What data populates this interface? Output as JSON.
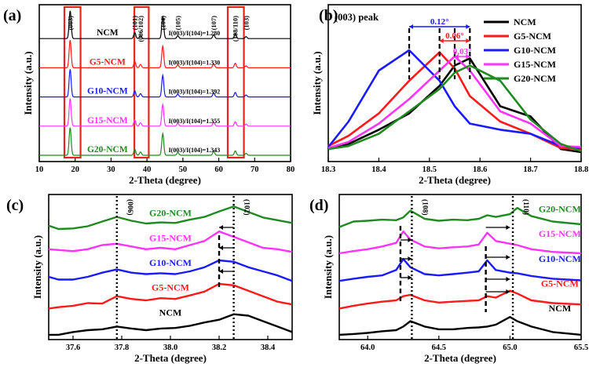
{
  "chart_data": [
    {
      "panel": "(a)",
      "type": "line",
      "xlabel": "2-Theta (degree)",
      "ylabel": "Intensity (a.u.)",
      "xlim": [
        10,
        80
      ],
      "xticks": [
        10,
        20,
        30,
        40,
        50,
        60,
        70,
        80
      ],
      "series": [
        {
          "name": "NCM",
          "color": "#000000",
          "ratio": "I(003)/I(104)=1.280"
        },
        {
          "name": "G5-NCM",
          "color": "#ff1a1a",
          "ratio": "I(003)/I(104)=1.330"
        },
        {
          "name": "G10-NCM",
          "color": "#1a1aff",
          "ratio": "I(003)/I(104)=1.392"
        },
        {
          "name": "G15-NCM",
          "color": "#ff33ff",
          "ratio": "I(003)/I(104)=1.355"
        },
        {
          "name": "G20-NCM",
          "color": "#1f8a1f",
          "ratio": "I(003)/I(104)=1.343"
        }
      ],
      "peaks": [
        {
          "label": "(003)",
          "x": 18.6,
          "h": 1.0
        },
        {
          "label": "(101)",
          "x": 36.6,
          "h": 0.22
        },
        {
          "label": "(006/102)",
          "x": 38.2,
          "h": 0.12
        },
        {
          "label": "(104)",
          "x": 44.4,
          "h": 0.78
        },
        {
          "label": "(105)",
          "x": 48.6,
          "h": 0.1
        },
        {
          "label": "(107)",
          "x": 58.6,
          "h": 0.14
        },
        {
          "label": "(108/110)",
          "x": 64.6,
          "h": 0.16
        },
        {
          "label": "(103)",
          "x": 67.6,
          "h": 0.07
        }
      ],
      "highlight_boxes": [
        [
          17,
          21.5
        ],
        [
          36.5,
          40.5
        ],
        [
          62.5,
          67
        ]
      ]
    },
    {
      "panel": "(b)",
      "type": "line",
      "title": "(003) peak",
      "xlabel": "2-Theta (degree)",
      "ylabel": "Intensity (a.u.)",
      "xlim": [
        18.3,
        18.8
      ],
      "xticks": [
        18.3,
        18.4,
        18.5,
        18.6,
        18.7,
        18.8
      ],
      "x": [
        18.3,
        18.34,
        18.4,
        18.46,
        18.52,
        18.55,
        18.58,
        18.64,
        18.7,
        18.76,
        18.8
      ],
      "series": [
        {
          "name": "NCM",
          "color": "#000000",
          "values": [
            0.03,
            0.08,
            0.22,
            0.38,
            0.65,
            0.85,
            0.92,
            0.45,
            0.35,
            0.03,
            0.0
          ]
        },
        {
          "name": "G5-NCM",
          "color": "#ff1a1a",
          "values": [
            0.06,
            0.16,
            0.38,
            0.7,
            0.98,
            0.82,
            0.55,
            0.3,
            0.18,
            0.04,
            0.03
          ]
        },
        {
          "name": "G10-NCM",
          "color": "#1a1aff",
          "values": [
            0.05,
            0.3,
            0.8,
            1.0,
            0.7,
            0.45,
            0.28,
            0.22,
            0.18,
            0.06,
            0.04
          ]
        },
        {
          "name": "G15-NCM",
          "color": "#ff33ff",
          "values": [
            0.04,
            0.1,
            0.28,
            0.52,
            0.8,
            0.94,
            0.8,
            0.4,
            0.28,
            0.06,
            0.05
          ]
        },
        {
          "name": "G20-NCM",
          "color": "#1f8a1f",
          "values": [
            0.03,
            0.06,
            0.18,
            0.4,
            0.62,
            0.78,
            0.85,
            0.7,
            0.32,
            0.08,
            0.01
          ]
        }
      ],
      "annotations": [
        {
          "text": "0.12°",
          "color": "#1a1aff",
          "from": 18.46,
          "to": 18.58
        },
        {
          "text": "0.06°",
          "color": "#ff1a1a",
          "from": 18.52,
          "to": 18.58
        },
        {
          "text": "0.03°",
          "color": "#ff33ff",
          "from": 18.55,
          "to": 18.58
        }
      ]
    },
    {
      "panel": "(c)",
      "type": "line",
      "xlabel": "2-Theta (degree)",
      "ylabel": "Intensity (a.u.)",
      "xlim": [
        37.5,
        38.5
      ],
      "xticks": [
        37.6,
        37.8,
        38.0,
        38.2,
        38.4
      ],
      "x": [
        37.5,
        37.54,
        37.6,
        37.66,
        37.72,
        37.78,
        37.84,
        37.9,
        37.96,
        38.02,
        38.08,
        38.14,
        38.2,
        38.26,
        38.32,
        38.38,
        38.44,
        38.5
      ],
      "peak_markers": [
        {
          "label": "(006)",
          "x": 37.78
        },
        {
          "label": "(102)",
          "x": 38.26
        }
      ],
      "series": [
        {
          "name": "G20-NCM",
          "color": "#1f8a1f",
          "values": [
            0.4,
            0.28,
            0.3,
            0.38,
            0.55,
            0.72,
            0.58,
            0.48,
            0.52,
            0.5,
            0.62,
            0.72,
            0.92,
            1.1,
            0.9,
            0.7,
            0.6,
            0.5
          ]
        },
        {
          "name": "G15-NCM",
          "color": "#ff33ff",
          "values": [
            0.45,
            0.42,
            0.38,
            0.45,
            0.6,
            0.65,
            0.55,
            0.45,
            0.5,
            0.45,
            0.6,
            0.75,
            1.1,
            0.9,
            0.7,
            0.5,
            0.45,
            0.35
          ]
        },
        {
          "name": "G10-NCM",
          "color": "#1a1aff",
          "values": [
            0.35,
            0.25,
            0.25,
            0.35,
            0.5,
            0.62,
            0.5,
            0.45,
            0.48,
            0.45,
            0.55,
            0.7,
            0.95,
            0.9,
            0.7,
            0.55,
            0.4,
            0.2
          ]
        },
        {
          "name": "G5-NCM",
          "color": "#ff1a1a",
          "values": [
            0.1,
            0.15,
            0.2,
            0.3,
            0.28,
            0.55,
            0.45,
            0.4,
            0.48,
            0.45,
            0.58,
            0.72,
            1.0,
            0.95,
            0.75,
            0.55,
            0.35,
            0.25
          ]
        },
        {
          "name": "NCM",
          "color": "#000000",
          "values": [
            0.05,
            0.05,
            0.15,
            0.22,
            0.25,
            0.35,
            0.28,
            0.22,
            0.28,
            0.3,
            0.38,
            0.5,
            0.6,
            0.8,
            0.75,
            0.55,
            0.35,
            0.15
          ]
        }
      ]
    },
    {
      "panel": "(d)",
      "type": "line",
      "xlabel": "2-Theta (degree)",
      "ylabel": "Intensity (a.u.)",
      "xlim": [
        63.8,
        65.5
      ],
      "xticks": [
        64.0,
        64.5,
        65.0,
        65.5
      ],
      "x": [
        63.8,
        63.9,
        64.0,
        64.1,
        64.2,
        64.25,
        64.3,
        64.4,
        64.5,
        64.6,
        64.7,
        64.78,
        64.84,
        64.9,
        65.0,
        65.05,
        65.15,
        65.3,
        65.5
      ],
      "peak_markers": [
        {
          "label": "(108)",
          "x": 64.31
        },
        {
          "label": "(110)",
          "x": 65.02
        }
      ],
      "series": [
        {
          "name": "G20-NCM",
          "color": "#1f8a1f",
          "values": [
            0.35,
            0.55,
            0.58,
            0.62,
            0.6,
            0.7,
            0.95,
            0.65,
            0.58,
            0.62,
            0.6,
            0.65,
            0.78,
            0.72,
            0.82,
            1.05,
            0.75,
            0.55,
            0.45
          ]
        },
        {
          "name": "G15-NCM",
          "color": "#ff33ff",
          "values": [
            0.3,
            0.38,
            0.45,
            0.55,
            0.68,
            1.1,
            0.8,
            0.55,
            0.48,
            0.52,
            0.55,
            0.62,
            1.05,
            0.75,
            0.65,
            0.6,
            0.45,
            0.35,
            0.3
          ]
        },
        {
          "name": "G10-NCM",
          "color": "#1a1aff",
          "values": [
            0.2,
            0.28,
            0.35,
            0.4,
            0.6,
            1.0,
            0.7,
            0.45,
            0.4,
            0.45,
            0.5,
            0.55,
            0.95,
            0.6,
            0.5,
            0.48,
            0.38,
            0.28,
            0.22
          ]
        },
        {
          "name": "G5-NCM",
          "color": "#ff1a1a",
          "values": [
            0.1,
            0.2,
            0.28,
            0.35,
            0.4,
            0.55,
            0.6,
            0.4,
            0.32,
            0.35,
            0.38,
            0.4,
            0.55,
            0.5,
            0.75,
            0.65,
            0.4,
            0.3,
            0.25
          ]
        },
        {
          "name": "NCM",
          "color": "#000000",
          "values": [
            0.05,
            0.08,
            0.12,
            0.18,
            0.22,
            0.35,
            0.55,
            0.35,
            0.25,
            0.25,
            0.3,
            0.32,
            0.35,
            0.42,
            0.7,
            0.55,
            0.35,
            0.15,
            0.05
          ]
        }
      ]
    }
  ]
}
